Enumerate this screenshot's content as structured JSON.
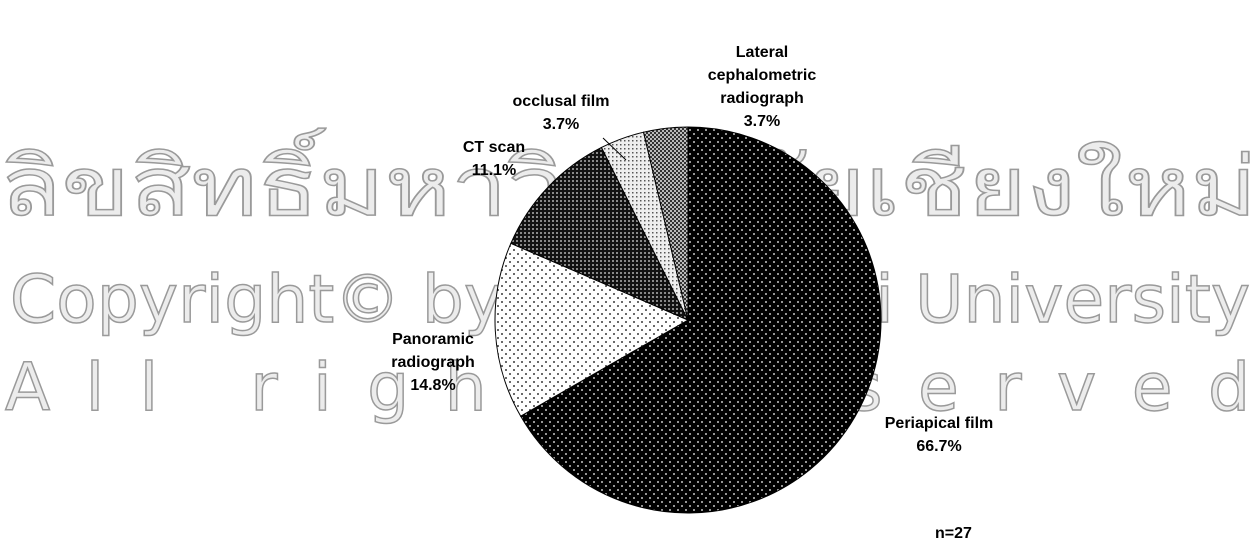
{
  "chart_data": {
    "type": "pie",
    "categories": [
      "Periapical film",
      "Panoramic radiograph",
      "CT scan",
      "occlusal film",
      "Lateral cephalometric radiograph"
    ],
    "values": [
      66.7,
      14.8,
      11.1,
      3.7,
      3.7
    ],
    "value_labels": [
      "66.7%",
      "14.8%",
      "11.1%",
      "3.7%",
      "3.7%"
    ],
    "annotation": "n=27"
  },
  "watermark": {
    "line1": "ลิขสิทธิ์มหาวิทยาลัยเชียงใหม่",
    "line2": "Copyright© by Chiang Mai University",
    "line3": "All rights reserved"
  }
}
